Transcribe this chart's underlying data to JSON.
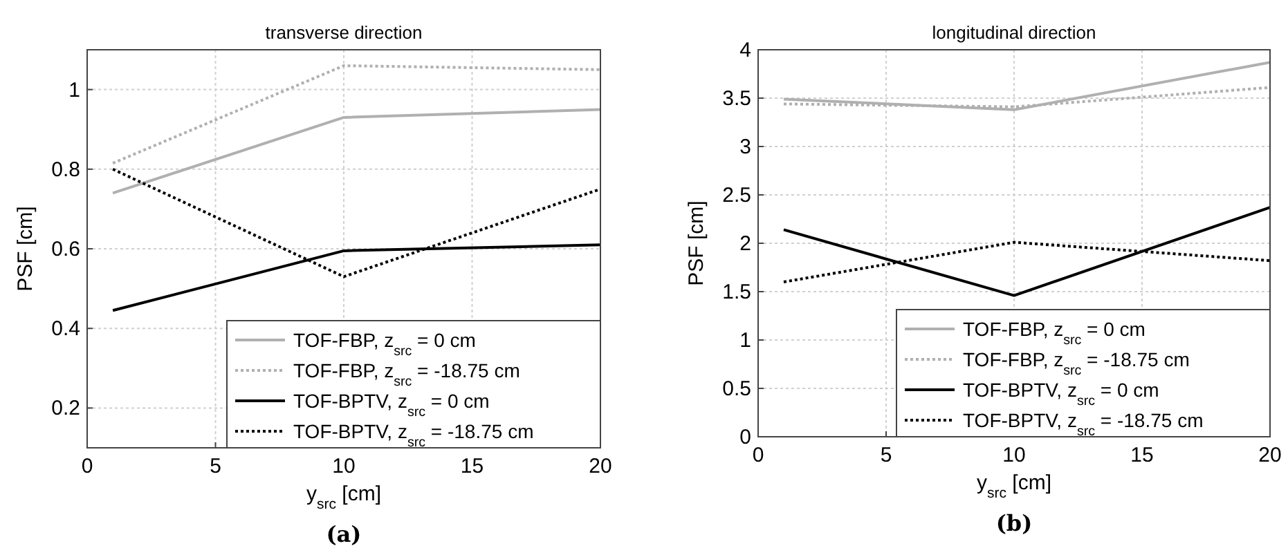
{
  "chart_data": [
    {
      "type": "line",
      "title": "transverse direction",
      "xlabel": "y$_{src}$ [cm]",
      "ylabel": "PSF [cm]",
      "annotations": [
        "(a)"
      ],
      "x": [
        1,
        10,
        20
      ],
      "xlim": [
        0,
        20
      ],
      "xticks": [
        0,
        5,
        10,
        15,
        20
      ],
      "ylim": [
        0.1,
        1.1
      ],
      "yticks": [
        0.2,
        0.4,
        0.6,
        0.8,
        1
      ],
      "grid": true,
      "legend": "bottom right",
      "series": [
        {
          "name": "TOF-FBP, z$_{src}$ = 0 cm",
          "color": "#b0b0b0",
          "line_style": "solid",
          "values": [
            0.74,
            0.93,
            0.95
          ]
        },
        {
          "name": "TOF-FBP, z$_{src}$ = -18.75 cm",
          "color": "#b0b0b0",
          "line_style": "dotted",
          "values": [
            0.815,
            1.06,
            1.05
          ]
        },
        {
          "name": "TOF-BPTV, z$_{src}$ = 0 cm",
          "color": "#000000",
          "line_style": "solid",
          "values": [
            0.445,
            0.595,
            0.61
          ]
        },
        {
          "name": "TOF-BPTV, z$_{src}$ = -18.75 cm",
          "color": "#000000",
          "line_style": "dotted",
          "values": [
            0.8,
            0.53,
            0.75
          ]
        }
      ]
    },
    {
      "type": "line",
      "title": "longitudinal direction",
      "xlabel": "y$_{src}$ [cm]",
      "ylabel": "PSF [cm]",
      "annotations": [
        "(b)"
      ],
      "x": [
        1,
        10,
        20
      ],
      "xlim": [
        0,
        20
      ],
      "xticks": [
        0,
        5,
        10,
        15,
        20
      ],
      "ylim": [
        0,
        4
      ],
      "yticks": [
        0,
        0.5,
        1,
        1.5,
        2,
        2.5,
        3,
        3.5,
        4
      ],
      "grid": true,
      "legend": "bottom right",
      "series": [
        {
          "name": "TOF-FBP, z$_{src}$ = 0 cm",
          "color": "#b0b0b0",
          "line_style": "solid",
          "values": [
            3.49,
            3.38,
            3.87
          ]
        },
        {
          "name": "TOF-FBP, z$_{src}$ = -18.75 cm",
          "color": "#b0b0b0",
          "line_style": "dotted",
          "values": [
            3.44,
            3.41,
            3.61
          ]
        },
        {
          "name": "TOF-BPTV, z$_{src}$ = 0 cm",
          "color": "#000000",
          "line_style": "solid",
          "values": [
            2.14,
            1.46,
            2.37
          ]
        },
        {
          "name": "TOF-BPTV, z$_{src}$ = -18.75 cm",
          "color": "#000000",
          "line_style": "dotted",
          "values": [
            1.6,
            2.01,
            1.82
          ]
        }
      ]
    }
  ]
}
